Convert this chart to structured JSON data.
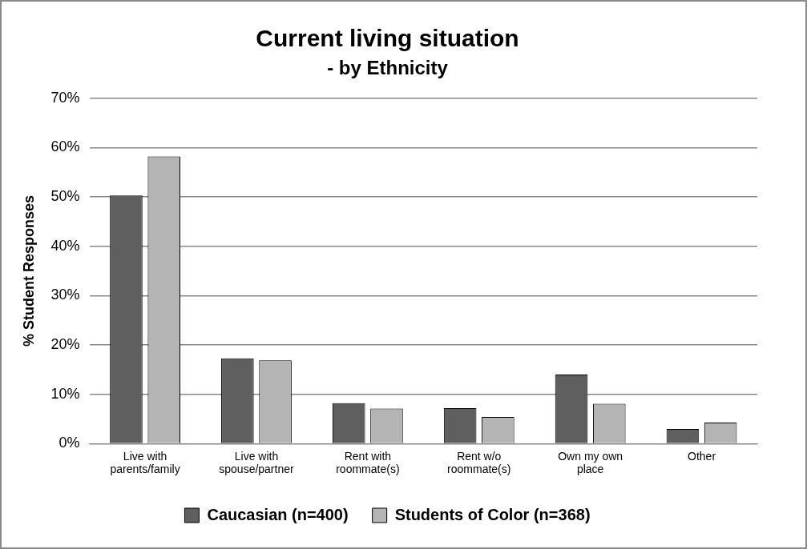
{
  "chart_data": {
    "type": "bar",
    "title": "Current living situation",
    "subtitle": "- by Ethnicity",
    "ylabel": "% Student Responses",
    "categories": [
      "Live with parents/family",
      "Live with spouse/partner",
      "Rent with roommate(s)",
      "Rent w/o roommate(s)",
      "Own my own place",
      "Other"
    ],
    "series": [
      {
        "name": "Caucasian (n=400)",
        "color": "#5f5f5f",
        "values": [
          50.3,
          17.3,
          8.2,
          7.2,
          14.0,
          3.0
        ]
      },
      {
        "name": "Students of Color (n=368)",
        "color": "#b4b4b4",
        "values": [
          58.2,
          16.9,
          7.1,
          5.4,
          8.1,
          4.3
        ]
      }
    ],
    "ylim": [
      0,
      70
    ],
    "yticks": [
      {
        "value": 0,
        "label": "0%"
      },
      {
        "value": 10,
        "label": "10%"
      },
      {
        "value": 20,
        "label": "20%"
      },
      {
        "value": 30,
        "label": "30%"
      },
      {
        "value": 40,
        "label": "40%"
      },
      {
        "value": 50,
        "label": "50%"
      },
      {
        "value": 60,
        "label": "60%"
      },
      {
        "value": 70,
        "label": "70%"
      }
    ],
    "grid": "y",
    "legend": "bottom"
  }
}
